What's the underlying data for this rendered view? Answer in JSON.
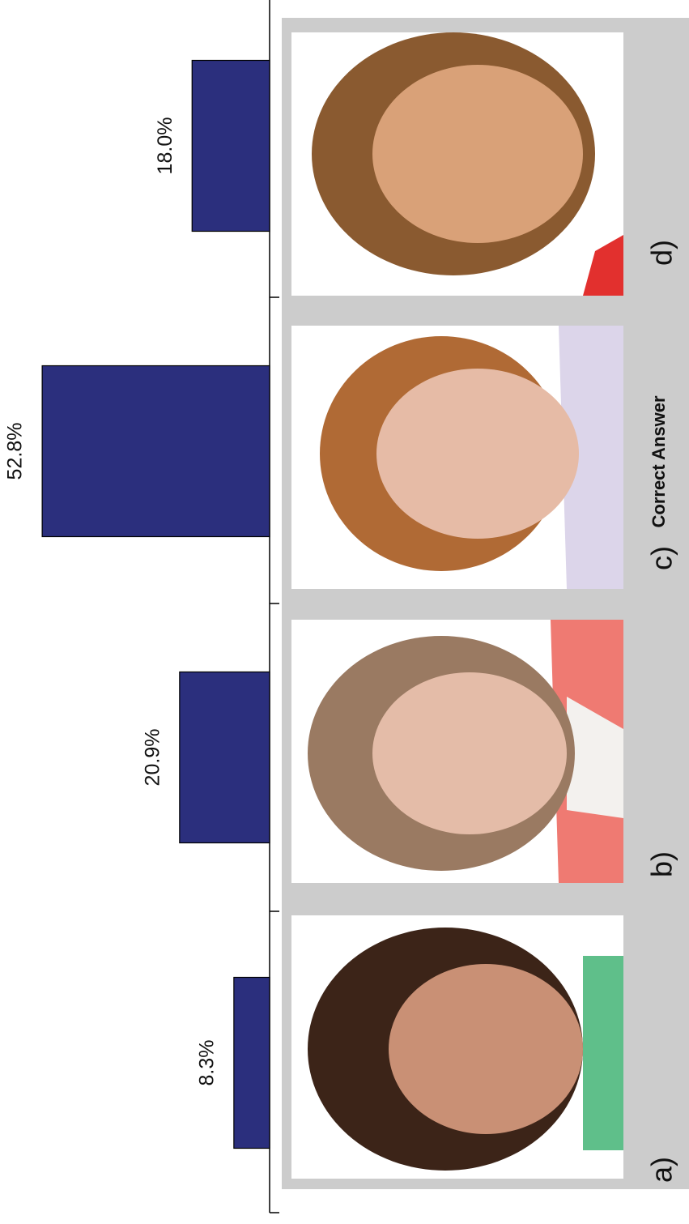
{
  "chart_data": {
    "type": "bar",
    "orientation": "horizontal",
    "categories": [
      "a)",
      "b)",
      "c)",
      "d)"
    ],
    "values": [
      8.3,
      20.9,
      52.8,
      18.0
    ],
    "value_labels": [
      "8.3%",
      "20.9%",
      "52.8%",
      "18.0%"
    ],
    "color": "#2b2f7d",
    "annotation": "Correct Answer"
  }
}
